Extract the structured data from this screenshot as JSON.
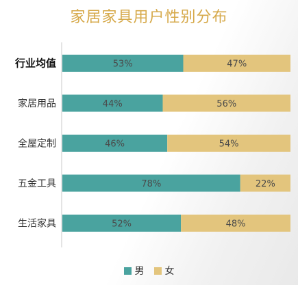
{
  "chart_data": {
    "type": "bar",
    "orientation": "horizontal",
    "stacked": true,
    "title": "家居家具用户性别分布",
    "categories": [
      "行业均值",
      "家居用品",
      "全屋定制",
      "五金工具",
      "生活家具"
    ],
    "series": [
      {
        "name": "男",
        "color": "#4aa39f",
        "values": [
          53,
          44,
          46,
          78,
          52
        ],
        "labels": [
          "53%",
          "44%",
          "46%",
          "78%",
          "52%"
        ]
      },
      {
        "name": "女",
        "color": "#e3c57d",
        "values": [
          47,
          56,
          54,
          22,
          48
        ],
        "labels": [
          "47%",
          "56%",
          "54%",
          "22%",
          "48%"
        ]
      }
    ],
    "xlim": [
      0,
      100
    ],
    "grid": false,
    "legend_position": "bottom",
    "highlighted_category": "行业均值"
  }
}
